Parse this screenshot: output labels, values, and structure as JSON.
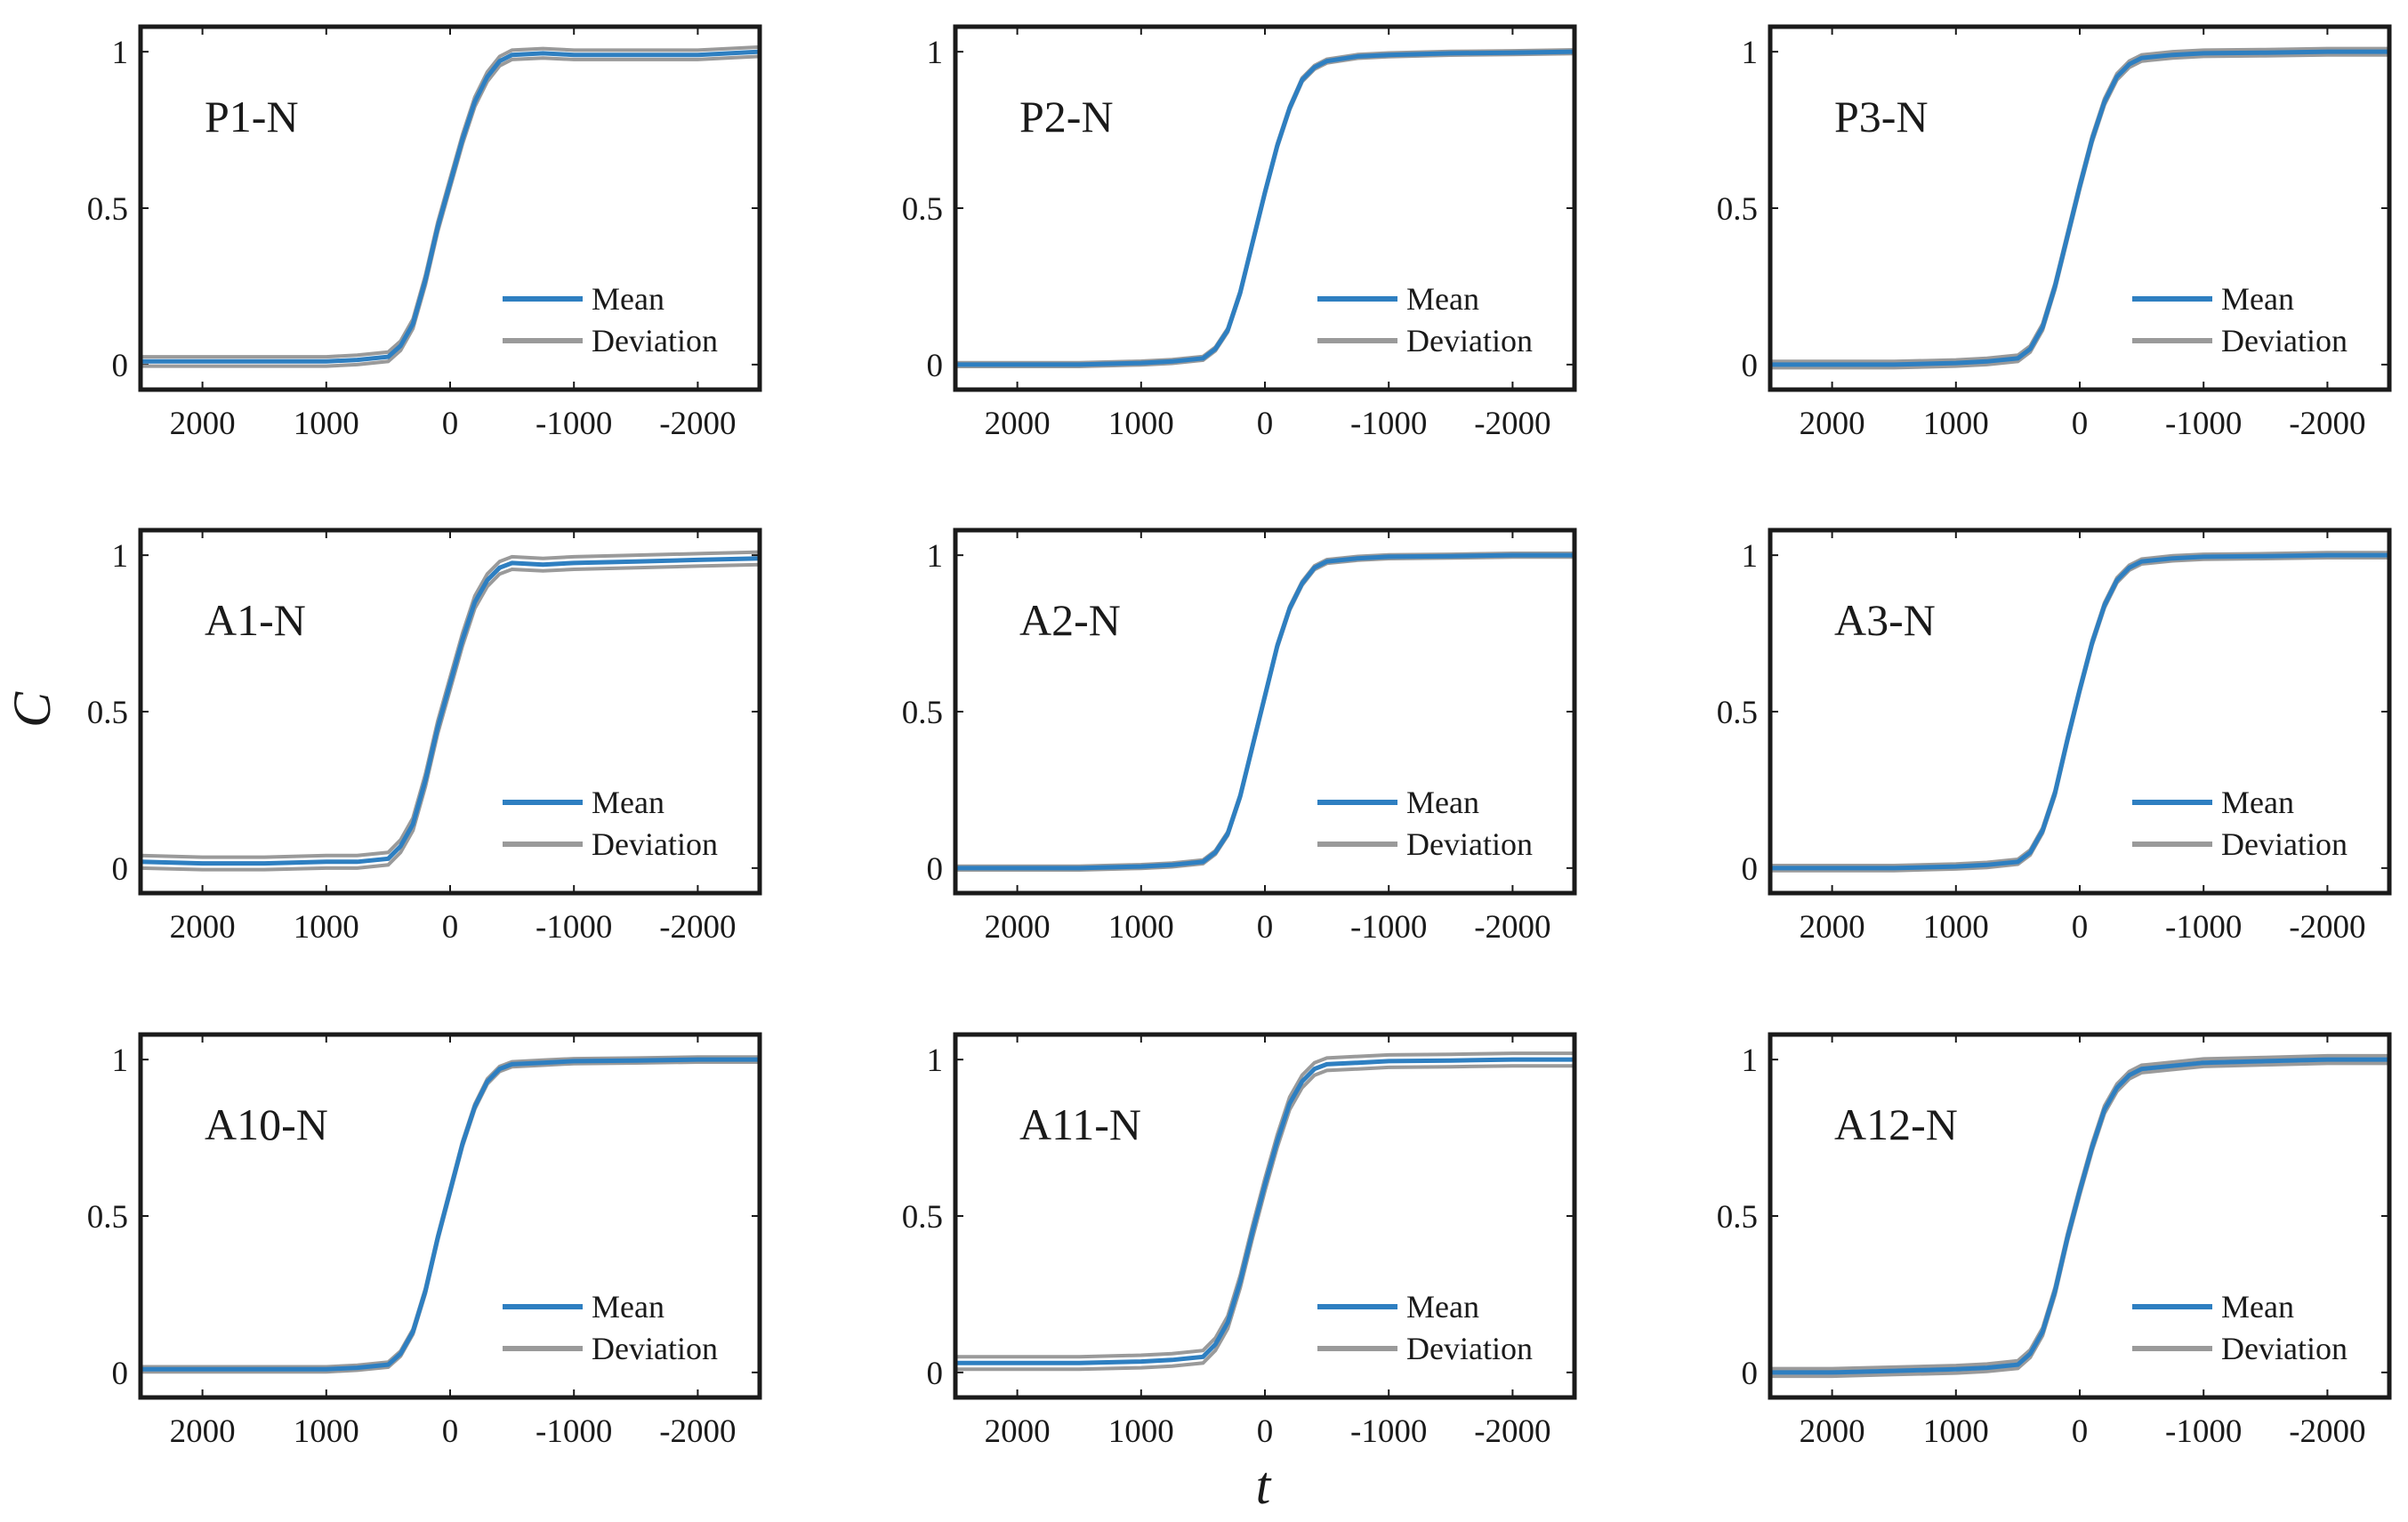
{
  "chart_data": {
    "type": "line",
    "layout": "3x3 grid of small multiples",
    "shared_xlabel": "t",
    "shared_ylabel": "C",
    "xlim": [
      2500,
      -2500
    ],
    "ylim": [
      -0.08,
      1.08
    ],
    "xticks": [
      2000,
      1000,
      0,
      -1000,
      -2000
    ],
    "xtick_labels": [
      "2000",
      "1000",
      "0",
      "-1000",
      "-2000"
    ],
    "yticks": [
      0,
      0.5,
      1
    ],
    "ytick_labels": [
      "0",
      "0.5",
      "1"
    ],
    "legend": {
      "placement": "lower-right",
      "entries": [
        "Mean",
        "Deviation"
      ]
    },
    "colors": {
      "mean": "#2e7fc1",
      "deviation": "#9a9a9a",
      "axes": "#1a1a1a"
    },
    "x": [
      2500,
      2000,
      1500,
      1000,
      750,
      500,
      400,
      300,
      200,
      100,
      0,
      -100,
      -200,
      -300,
      -400,
      -500,
      -750,
      -1000,
      -1500,
      -2000,
      -2500
    ],
    "panels": [
      {
        "label": "P1-N",
        "series": [
          {
            "name": "Mean",
            "values": [
              0.01,
              0.01,
              0.01,
              0.01,
              0.015,
              0.025,
              0.06,
              0.13,
              0.27,
              0.44,
              0.58,
              0.72,
              0.84,
              0.92,
              0.97,
              0.99,
              0.995,
              0.99,
              0.99,
              0.99,
              1.0
            ]
          },
          {
            "name": "Deviation",
            "spread": [
              0.015,
              0.015,
              0.015,
              0.015,
              0.015,
              0.015,
              0.015,
              0.015,
              0.015,
              0.015,
              0.015,
              0.015,
              0.015,
              0.015,
              0.015,
              0.015,
              0.015,
              0.015,
              0.015,
              0.015,
              0.015
            ]
          }
        ]
      },
      {
        "label": "P2-N",
        "series": [
          {
            "name": "Mean",
            "values": [
              0.0,
              0.0,
              0.0,
              0.005,
              0.01,
              0.02,
              0.05,
              0.11,
              0.23,
              0.39,
              0.55,
              0.7,
              0.82,
              0.91,
              0.95,
              0.97,
              0.985,
              0.99,
              0.995,
              0.997,
              1.0
            ]
          },
          {
            "name": "Deviation",
            "spread": [
              0.006,
              0.006,
              0.006,
              0.006,
              0.006,
              0.006,
              0.006,
              0.006,
              0.006,
              0.006,
              0.006,
              0.006,
              0.006,
              0.006,
              0.006,
              0.006,
              0.006,
              0.006,
              0.006,
              0.006,
              0.006
            ]
          }
        ]
      },
      {
        "label": "P3-N",
        "series": [
          {
            "name": "Mean",
            "values": [
              0.0,
              0.0,
              0.0,
              0.005,
              0.01,
              0.02,
              0.05,
              0.12,
              0.25,
              0.41,
              0.57,
              0.72,
              0.84,
              0.92,
              0.96,
              0.98,
              0.99,
              0.995,
              0.997,
              1.0,
              1.0
            ]
          },
          {
            "name": "Deviation",
            "spread": [
              0.01,
              0.01,
              0.01,
              0.01,
              0.01,
              0.01,
              0.01,
              0.01,
              0.01,
              0.01,
              0.01,
              0.01,
              0.01,
              0.01,
              0.01,
              0.01,
              0.01,
              0.01,
              0.01,
              0.01,
              0.01
            ]
          }
        ]
      },
      {
        "label": "A1-N",
        "series": [
          {
            "name": "Mean",
            "values": [
              0.02,
              0.015,
              0.015,
              0.02,
              0.02,
              0.03,
              0.07,
              0.14,
              0.28,
              0.45,
              0.59,
              0.73,
              0.85,
              0.92,
              0.96,
              0.975,
              0.97,
              0.975,
              0.98,
              0.985,
              0.99
            ]
          },
          {
            "name": "Deviation",
            "spread": [
              0.02,
              0.02,
              0.02,
              0.02,
              0.02,
              0.02,
              0.02,
              0.02,
              0.02,
              0.02,
              0.02,
              0.02,
              0.02,
              0.02,
              0.02,
              0.02,
              0.02,
              0.02,
              0.02,
              0.02,
              0.02
            ]
          }
        ]
      },
      {
        "label": "A2-N",
        "series": [
          {
            "name": "Mean",
            "values": [
              0.0,
              0.0,
              0.0,
              0.005,
              0.01,
              0.02,
              0.05,
              0.11,
              0.23,
              0.39,
              0.55,
              0.71,
              0.83,
              0.91,
              0.96,
              0.98,
              0.99,
              0.995,
              0.997,
              1.0,
              1.0
            ]
          },
          {
            "name": "Deviation",
            "spread": [
              0.006,
              0.006,
              0.006,
              0.006,
              0.006,
              0.006,
              0.006,
              0.006,
              0.006,
              0.006,
              0.006,
              0.006,
              0.006,
              0.006,
              0.006,
              0.006,
              0.006,
              0.006,
              0.006,
              0.006,
              0.006
            ]
          }
        ]
      },
      {
        "label": "A3-N",
        "series": [
          {
            "name": "Mean",
            "values": [
              0.0,
              0.0,
              0.0,
              0.005,
              0.01,
              0.02,
              0.05,
              0.12,
              0.24,
              0.41,
              0.57,
              0.72,
              0.84,
              0.92,
              0.96,
              0.98,
              0.99,
              0.995,
              0.997,
              1.0,
              1.0
            ]
          },
          {
            "name": "Deviation",
            "spread": [
              0.008,
              0.008,
              0.008,
              0.008,
              0.008,
              0.008,
              0.008,
              0.008,
              0.008,
              0.008,
              0.008,
              0.008,
              0.008,
              0.008,
              0.008,
              0.008,
              0.008,
              0.008,
              0.008,
              0.008,
              0.008
            ]
          }
        ]
      },
      {
        "label": "A10-N",
        "series": [
          {
            "name": "Mean",
            "values": [
              0.01,
              0.01,
              0.01,
              0.01,
              0.015,
              0.025,
              0.06,
              0.13,
              0.26,
              0.43,
              0.58,
              0.73,
              0.85,
              0.93,
              0.97,
              0.985,
              0.99,
              0.995,
              0.997,
              1.0,
              1.0
            ]
          },
          {
            "name": "Deviation",
            "spread": [
              0.008,
              0.008,
              0.008,
              0.008,
              0.008,
              0.008,
              0.008,
              0.008,
              0.008,
              0.008,
              0.008,
              0.008,
              0.008,
              0.008,
              0.008,
              0.008,
              0.008,
              0.008,
              0.008,
              0.008,
              0.008
            ]
          }
        ]
      },
      {
        "label": "A11-N",
        "series": [
          {
            "name": "Mean",
            "values": [
              0.03,
              0.03,
              0.03,
              0.035,
              0.04,
              0.05,
              0.09,
              0.16,
              0.29,
              0.45,
              0.6,
              0.74,
              0.86,
              0.93,
              0.97,
              0.985,
              0.99,
              0.995,
              0.997,
              1.0,
              1.0
            ]
          },
          {
            "name": "Deviation",
            "spread": [
              0.02,
              0.02,
              0.02,
              0.02,
              0.02,
              0.02,
              0.02,
              0.02,
              0.02,
              0.02,
              0.02,
              0.02,
              0.02,
              0.02,
              0.02,
              0.02,
              0.02,
              0.02,
              0.02,
              0.02,
              0.02
            ]
          }
        ]
      },
      {
        "label": "A12-N",
        "series": [
          {
            "name": "Mean",
            "values": [
              0.0,
              0.0,
              0.005,
              0.01,
              0.015,
              0.025,
              0.06,
              0.13,
              0.26,
              0.43,
              0.58,
              0.72,
              0.84,
              0.91,
              0.95,
              0.97,
              0.98,
              0.99,
              0.995,
              1.0,
              1.0
            ]
          },
          {
            "name": "Deviation",
            "spread": [
              0.012,
              0.012,
              0.012,
              0.012,
              0.012,
              0.012,
              0.012,
              0.012,
              0.012,
              0.012,
              0.012,
              0.012,
              0.012,
              0.012,
              0.012,
              0.012,
              0.012,
              0.012,
              0.012,
              0.012,
              0.012
            ]
          }
        ]
      }
    ]
  }
}
